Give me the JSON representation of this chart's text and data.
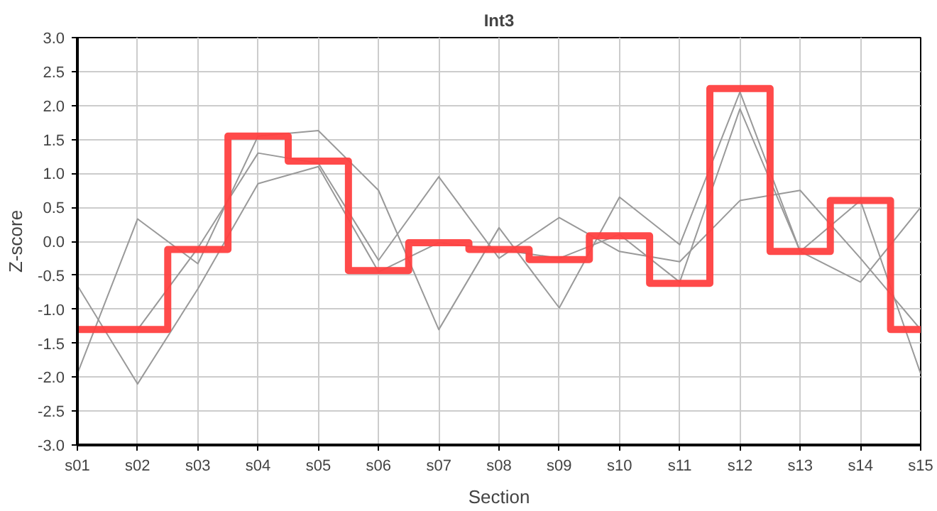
{
  "chart_data": {
    "type": "line",
    "title": "Int3",
    "xlabel": "Section",
    "ylabel": "Z-score",
    "categories": [
      "s01",
      "s02",
      "s03",
      "s04",
      "s05",
      "s06",
      "s07",
      "s08",
      "s09",
      "s10",
      "s11",
      "s12",
      "s13",
      "s14",
      "s15"
    ],
    "series": [
      {
        "color": "#999999",
        "values": [
          -0.65,
          -2.1,
          -0.7,
          0.85,
          1.1,
          -0.45,
          -0.02,
          -0.12,
          -0.25,
          0.1,
          -0.6,
          1.95,
          -0.15,
          -0.6,
          0.5
        ]
      },
      {
        "color": "#999999",
        "values": [
          -1.95,
          0.33,
          -0.33,
          1.55,
          1.63,
          0.75,
          -1.3,
          0.2,
          -0.98,
          0.65,
          -0.05,
          2.2,
          -0.15,
          0.6,
          -1.95
        ]
      },
      {
        "color": "#999999",
        "values": [
          null,
          -1.3,
          -0.1,
          1.3,
          1.15,
          -0.28,
          0.95,
          -0.25,
          0.35,
          -0.15,
          -0.3,
          0.6,
          0.75,
          -0.25,
          -1.3
        ]
      },
      {
        "type": "step",
        "color": "#ff4040",
        "values": [
          -1.3,
          -1.3,
          -0.12,
          1.55,
          1.18,
          -0.43,
          -0.02,
          -0.12,
          -0.27,
          0.08,
          -0.62,
          2.25,
          -0.15,
          0.6,
          -1.3
        ]
      }
    ],
    "ylim": [
      -3.0,
      3.0
    ],
    "yticks": [
      {
        "value": -3,
        "label": "-3.0"
      },
      {
        "value": -2.5,
        "label": "-2.5"
      },
      {
        "value": -2,
        "label": "-2.0"
      },
      {
        "value": -1.5,
        "label": "-1.5"
      },
      {
        "value": -1,
        "label": "-1.0"
      },
      {
        "value": -0.5,
        "label": "-0.5"
      },
      {
        "value": 0,
        "label": "0.0"
      },
      {
        "value": 0.5,
        "label": "0.5"
      },
      {
        "value": 1,
        "label": "1.0"
      },
      {
        "value": 1.5,
        "label": "1.5"
      },
      {
        "value": 2,
        "label": "2.0"
      },
      {
        "value": 2.5,
        "label": "2.5"
      },
      {
        "value": 3,
        "label": "3.0"
      }
    ],
    "grid": true
  }
}
